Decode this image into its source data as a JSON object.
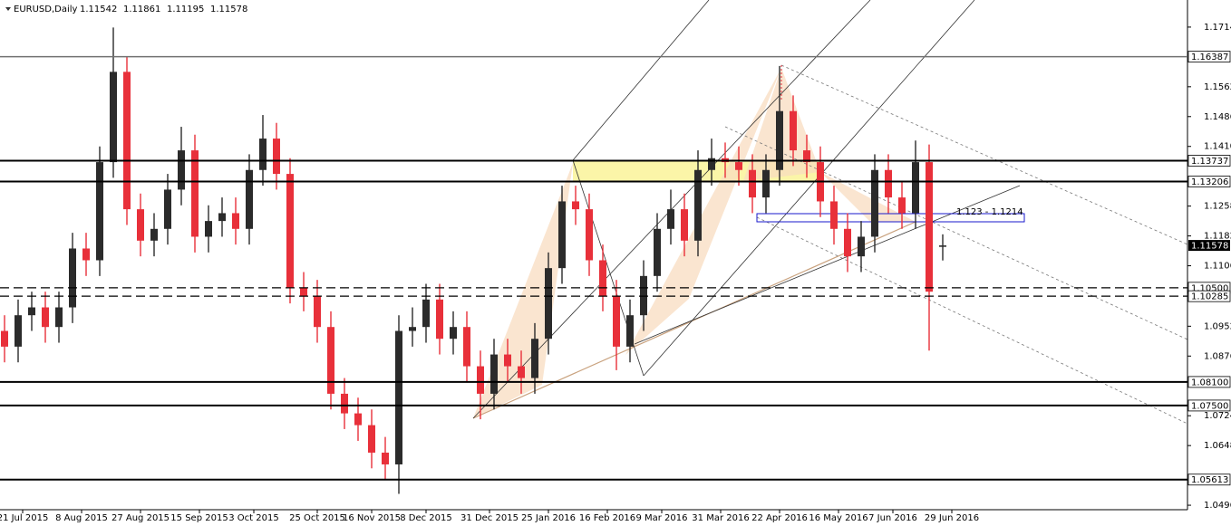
{
  "chart_data": {
    "type": "candlestick",
    "title": "EURUSD,Daily",
    "ohlc": [
      "1.11542",
      "1.11861",
      "1.11195",
      "1.11578"
    ],
    "annotation": "1.123 - 1.1214",
    "up_color": "#2b2b2b",
    "down_color": "#e8303a",
    "x": [
      1,
      4,
      7,
      10,
      13,
      16,
      19,
      22,
      25,
      28,
      31,
      34,
      37,
      40,
      43,
      46,
      49,
      52,
      55,
      58,
      61,
      64,
      67,
      70,
      73,
      76,
      79,
      82,
      85,
      88,
      91,
      94,
      97,
      100,
      103,
      106,
      109,
      112,
      115,
      118,
      121,
      124,
      127,
      130,
      133,
      136,
      139,
      142,
      145,
      148,
      151,
      154,
      157,
      160,
      163,
      166,
      169,
      172,
      175,
      178,
      181,
      184,
      187,
      190,
      193,
      196,
      199,
      202,
      205,
      208
    ],
    "open": [
      1.094,
      1.09,
      1.098,
      1.1,
      1.095,
      1.1,
      1.115,
      1.112,
      1.137,
      1.16,
      1.125,
      1.117,
      1.12,
      1.13,
      1.14,
      1.118,
      1.122,
      1.124,
      1.12,
      1.135,
      1.143,
      1.134,
      1.105,
      1.103,
      1.095,
      1.078,
      1.073,
      1.07,
      1.063,
      1.06,
      1.094,
      1.095,
      1.102,
      1.092,
      1.095,
      1.085,
      1.078,
      1.088,
      1.085,
      1.082,
      1.092,
      1.11,
      1.127,
      1.125,
      1.112,
      1.103,
      1.09,
      1.098,
      1.108,
      1.12,
      1.125,
      1.117,
      1.135,
      1.138,
      1.137,
      1.135,
      1.128,
      1.135,
      1.15,
      1.14,
      1.137,
      1.127,
      1.12,
      1.113,
      1.118,
      1.135,
      1.128,
      1.124,
      1.137,
      1.11542
    ],
    "high": [
      1.098,
      1.102,
      1.104,
      1.104,
      1.104,
      1.119,
      1.119,
      1.141,
      1.1713,
      1.164,
      1.129,
      1.124,
      1.134,
      1.146,
      1.144,
      1.126,
      1.128,
      1.128,
      1.139,
      1.149,
      1.147,
      1.138,
      1.109,
      1.107,
      1.099,
      1.082,
      1.077,
      1.074,
      1.067,
      1.098,
      1.1,
      1.106,
      1.106,
      1.099,
      1.099,
      1.089,
      1.092,
      1.092,
      1.089,
      1.096,
      1.114,
      1.131,
      1.131,
      1.129,
      1.116,
      1.107,
      1.102,
      1.112,
      1.124,
      1.13,
      1.129,
      1.14,
      1.143,
      1.142,
      1.141,
      1.139,
      1.139,
      1.1615,
      1.154,
      1.144,
      1.141,
      1.131,
      1.124,
      1.122,
      1.139,
      1.139,
      1.132,
      1.1425,
      1.1415,
      1.11861
    ],
    "low": [
      1.086,
      1.086,
      1.094,
      1.091,
      1.091,
      1.096,
      1.108,
      1.108,
      1.133,
      1.121,
      1.113,
      1.113,
      1.116,
      1.126,
      1.114,
      1.114,
      1.118,
      1.116,
      1.116,
      1.131,
      1.13,
      1.101,
      1.099,
      1.091,
      1.074,
      1.069,
      1.066,
      1.059,
      1.056,
      1.0525,
      1.09,
      1.091,
      1.088,
      1.088,
      1.081,
      1.0715,
      1.074,
      1.081,
      1.078,
      1.078,
      1.088,
      1.106,
      1.121,
      1.108,
      1.099,
      1.084,
      1.086,
      1.094,
      1.104,
      1.116,
      1.113,
      1.113,
      1.131,
      1.133,
      1.131,
      1.124,
      1.124,
      1.131,
      1.136,
      1.133,
      1.123,
      1.116,
      1.109,
      1.109,
      1.114,
      1.124,
      1.12,
      1.12,
      1.089,
      1.11195
    ],
    "close": [
      1.09,
      1.098,
      1.1,
      1.095,
      1.1,
      1.115,
      1.112,
      1.137,
      1.16,
      1.125,
      1.117,
      1.12,
      1.13,
      1.14,
      1.118,
      1.122,
      1.124,
      1.12,
      1.135,
      1.143,
      1.134,
      1.105,
      1.103,
      1.095,
      1.078,
      1.073,
      1.07,
      1.063,
      1.06,
      1.094,
      1.095,
      1.102,
      1.092,
      1.095,
      1.085,
      1.078,
      1.088,
      1.085,
      1.082,
      1.092,
      1.11,
      1.127,
      1.125,
      1.112,
      1.103,
      1.09,
      1.098,
      1.108,
      1.12,
      1.125,
      1.117,
      1.135,
      1.138,
      1.137,
      1.135,
      1.128,
      1.135,
      1.15,
      1.14,
      1.137,
      1.127,
      1.12,
      1.113,
      1.118,
      1.135,
      1.128,
      1.124,
      1.137,
      1.104,
      1.11578
    ],
    "xlim": [
      0,
      262
    ],
    "xticks": [
      {
        "value": 5,
        "label": "21 Jul 2015"
      },
      {
        "value": 18,
        "label": "8 Aug 2015"
      },
      {
        "value": 31,
        "label": "27 Aug 2015"
      },
      {
        "value": 44,
        "label": "15 Sep 2015"
      },
      {
        "value": 56,
        "label": "3 Oct 2015"
      },
      {
        "value": 70,
        "label": "25 Oct 2015"
      },
      {
        "value": 82,
        "label": "16 Nov 2015"
      },
      {
        "value": 94,
        "label": "8 Dec 2015"
      },
      {
        "value": 108,
        "label": "31 Dec 2015"
      },
      {
        "value": 121,
        "label": "25 Jan 2016"
      },
      {
        "value": 134,
        "label": "16 Feb 2016"
      },
      {
        "value": 146,
        "label": "9 Mar 2016"
      },
      {
        "value": 159,
        "label": "31 Mar 2016"
      },
      {
        "value": 172,
        "label": "22 Apr 2016"
      },
      {
        "value": 185,
        "label": "16 May 2016"
      },
      {
        "value": 197,
        "label": "7 Jun 2016"
      },
      {
        "value": 210,
        "label": "29 Jun 2016"
      }
    ],
    "ylim": [
      1.048,
      1.1783
    ],
    "yticks": [
      {
        "value": 1.1714,
        "label": "1.17140"
      },
      {
        "value": 1.1562,
        "label": "1.15620"
      },
      {
        "value": 1.1486,
        "label": "1.14860"
      },
      {
        "value": 1.141,
        "label": "1.14100"
      },
      {
        "value": 1.1258,
        "label": "1.12580"
      },
      {
        "value": 1.1182,
        "label": "1.11820"
      },
      {
        "value": 1.1106,
        "label": "1.11060"
      },
      {
        "value": 1.0952,
        "label": "1.09520"
      },
      {
        "value": 1.0876,
        "label": "1.08760"
      },
      {
        "value": 1.0724,
        "label": "1.07240"
      },
      {
        "value": 1.0648,
        "label": "1.06480"
      },
      {
        "value": 1.0496,
        "label": "1.04960"
      }
    ],
    "levels": [
      {
        "value": 1.16387,
        "label": "1.16387",
        "color": "#707070",
        "width": 1.5,
        "dashed": false
      },
      {
        "value": 1.13737,
        "label": "1.13737",
        "color": "#000000",
        "width": 2,
        "dashed": false
      },
      {
        "value": 1.13206,
        "label": "1.13206",
        "color": "#000000",
        "width": 2,
        "dashed": false
      },
      {
        "value": 1.105,
        "label": "1.10500",
        "color": "#000000",
        "width": 1.2,
        "dashed": true
      },
      {
        "value": 1.10285,
        "label": "1.10285",
        "color": "#000000",
        "width": 1.2,
        "dashed": true
      },
      {
        "value": 1.081,
        "label": "1.08100",
        "color": "#000000",
        "width": 2,
        "dashed": false
      },
      {
        "value": 1.075,
        "label": "1.07500",
        "color": "#000000",
        "width": 2,
        "dashed": false
      },
      {
        "value": 1.05613,
        "label": "1.05613",
        "color": "#000000",
        "width": 2,
        "dashed": false
      }
    ],
    "last_price": 1.11578
  }
}
